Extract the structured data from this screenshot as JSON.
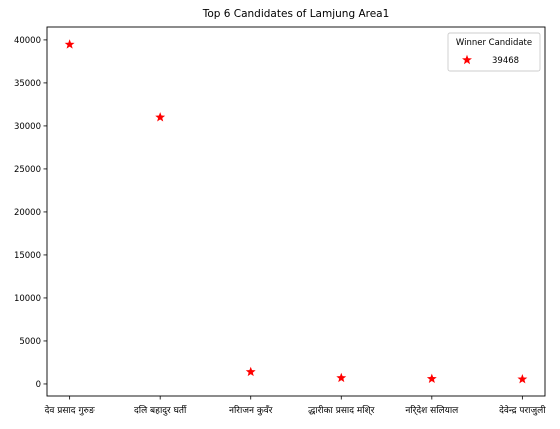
{
  "chart_data": {
    "type": "scatter",
    "title": "Top 6 Candidates of Lamjung Area1",
    "xlabel": "",
    "ylabel": "",
    "categories": [
      "देव प्रसाद गुरुङ",
      "दलि बहादुर घर्ती",
      "नरिाजन कुवँर",
      "द्धारीका प्रसाद मशि्र",
      "नरि्देश सलियाल",
      "देवेन्द्र पराजुली"
    ],
    "values": [
      39468,
      31000,
      1400,
      700,
      600,
      550
    ],
    "ylim": [
      -1400,
      41500
    ],
    "yticks": [
      0,
      5000,
      10000,
      15000,
      20000,
      25000,
      30000,
      35000,
      40000
    ],
    "grid": false,
    "marker": "star",
    "marker_color": "#ff0000",
    "legend": {
      "title": "Winner Candidate",
      "entries": [
        "39468"
      ],
      "placement": "top-right"
    }
  }
}
